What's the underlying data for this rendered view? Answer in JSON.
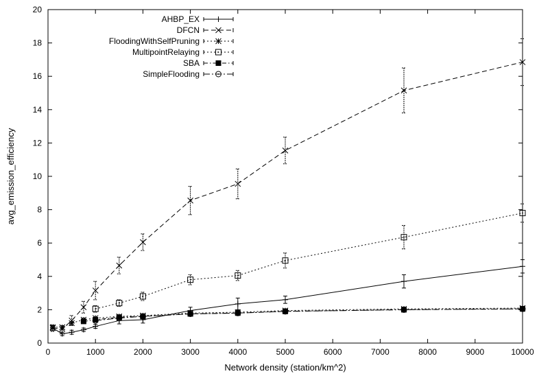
{
  "chart_data": {
    "type": "line",
    "title": "",
    "xlabel": "Network density (station/km^2)",
    "ylabel": "avg_emission_efficiency",
    "xlim": [
      0,
      10000
    ],
    "ylim": [
      0,
      20
    ],
    "xticks": [
      0,
      1000,
      2000,
      3000,
      4000,
      5000,
      6000,
      7000,
      8000,
      9000,
      10000
    ],
    "yticks": [
      0,
      2,
      4,
      6,
      8,
      10,
      12,
      14,
      16,
      18,
      20
    ],
    "grid": false,
    "legend_position": "top-left",
    "error_bars": true,
    "series": [
      {
        "name": "AHBP_EX",
        "line": "solid",
        "marker": "plus",
        "x": [
          100,
          300,
          500,
          750,
          1000,
          1500,
          2000,
          3000,
          4000,
          5000,
          7500,
          10000
        ],
        "y": [
          0.9,
          0.55,
          0.65,
          0.8,
          1.0,
          1.35,
          1.4,
          1.95,
          2.35,
          2.6,
          3.7,
          4.6
        ],
        "err": [
          0.15,
          0.1,
          0.12,
          0.1,
          0.12,
          0.2,
          0.2,
          0.2,
          0.35,
          0.22,
          0.4,
          0.4
        ]
      },
      {
        "name": "DFCN",
        "line": "dashed",
        "marker": "x",
        "x": [
          100,
          300,
          500,
          750,
          1000,
          1500,
          2000,
          3000,
          4000,
          5000,
          7500,
          10000
        ],
        "y": [
          0.9,
          0.85,
          1.35,
          2.15,
          3.15,
          4.65,
          6.05,
          8.55,
          9.55,
          11.55,
          15.15,
          16.85
        ],
        "err": [
          0.2,
          0.2,
          0.3,
          0.35,
          0.55,
          0.5,
          0.5,
          0.85,
          0.9,
          0.8,
          1.35,
          1.4
        ]
      },
      {
        "name": "FloodingWithSelfPruning",
        "line": "dotted",
        "marker": "asterisk",
        "x": [
          100,
          300,
          500,
          750,
          1000,
          1500,
          2000,
          3000,
          4000,
          5000,
          7500,
          10000
        ],
        "y": [
          0.95,
          0.95,
          1.2,
          1.4,
          1.5,
          1.6,
          1.65,
          1.8,
          1.85,
          1.95,
          2.05,
          2.1
        ],
        "err": [
          0.1,
          0.1,
          0.1,
          0.1,
          0.1,
          0.1,
          0.1,
          0.1,
          0.1,
          0.1,
          0.1,
          0.1
        ]
      },
      {
        "name": "MultipointRelaying",
        "line": "dotted",
        "marker": "square-dot",
        "x": [
          1000,
          1500,
          2000,
          3000,
          4000,
          5000,
          7500,
          10000
        ],
        "y": [
          2.05,
          2.4,
          2.8,
          3.8,
          4.05,
          4.95,
          6.35,
          7.8
        ],
        "err": [
          0.2,
          0.2,
          0.25,
          0.3,
          0.3,
          0.45,
          0.7,
          0.55
        ]
      },
      {
        "name": "SBA",
        "line": "dash-dot",
        "marker": "filled-square",
        "x": [
          750,
          1000,
          1500,
          2000,
          3000,
          4000,
          5000,
          7500,
          10000
        ],
        "y": [
          1.3,
          1.4,
          1.55,
          1.6,
          1.75,
          1.8,
          1.9,
          2.0,
          2.05
        ],
        "err": [
          0.08,
          0.08,
          0.08,
          0.08,
          0.08,
          0.08,
          0.08,
          0.08,
          0.08
        ]
      },
      {
        "name": "SimpleFlooding",
        "line": "dash-dot-long",
        "marker": "circle-dot",
        "x": [
          1000,
          1500,
          2000,
          3000,
          4000,
          5000,
          7500,
          10000
        ],
        "y": [
          1.35,
          1.5,
          1.6,
          1.75,
          1.8,
          1.9,
          2.0,
          2.05
        ],
        "err": [
          0.08,
          0.08,
          0.08,
          0.08,
          0.08,
          0.08,
          0.08,
          0.08
        ]
      }
    ]
  }
}
